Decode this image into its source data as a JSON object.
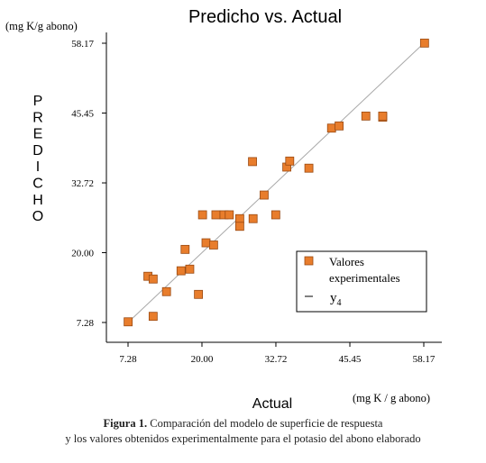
{
  "chart_data": {
    "type": "scatter",
    "title": "Predicho vs. Actual",
    "xlabel": "Actual",
    "ylabel": "P R E D I C H O",
    "x_units": "(mg K / g abono)",
    "y_units": "(mg K/g abono)",
    "xlim": [
      7.28,
      58.17
    ],
    "ylim": [
      7.28,
      58.17
    ],
    "xticks": [
      "7.28",
      "20.00",
      "32.72",
      "45.45",
      "58.17"
    ],
    "yticks": [
      "7.28",
      "20.00",
      "32.72",
      "45.45",
      "58.17"
    ],
    "grid": false,
    "legend": {
      "position": "bottom-right",
      "entries": [
        {
          "label_line1": "Valores",
          "label_line2": "experimentales",
          "marker": "square"
        },
        {
          "label": "y",
          "subscript": "4",
          "marker": "line"
        }
      ]
    },
    "colors": {
      "marker_fill": "#e87d2c",
      "marker_edge": "#9a4a12",
      "fit_line": "#a8a8a8",
      "axes": "#000000"
    },
    "series": [
      {
        "name": "Valores experimentales",
        "points": [
          {
            "x": 7.3,
            "y": 7.4
          },
          {
            "x": 11.6,
            "y": 8.4
          },
          {
            "x": 10.7,
            "y": 15.7
          },
          {
            "x": 11.6,
            "y": 15.2
          },
          {
            "x": 13.9,
            "y": 12.9
          },
          {
            "x": 16.4,
            "y": 16.7
          },
          {
            "x": 17.9,
            "y": 17.0
          },
          {
            "x": 17.1,
            "y": 20.6
          },
          {
            "x": 19.4,
            "y": 12.4
          },
          {
            "x": 20.7,
            "y": 21.8
          },
          {
            "x": 22.0,
            "y": 21.4
          },
          {
            "x": 20.1,
            "y": 26.9
          },
          {
            "x": 22.4,
            "y": 26.9
          },
          {
            "x": 23.8,
            "y": 26.9
          },
          {
            "x": 24.7,
            "y": 26.9
          },
          {
            "x": 26.5,
            "y": 26.2
          },
          {
            "x": 26.5,
            "y": 24.8
          },
          {
            "x": 28.7,
            "y": 36.6
          },
          {
            "x": 28.8,
            "y": 26.2
          },
          {
            "x": 30.7,
            "y": 30.5
          },
          {
            "x": 32.7,
            "y": 26.9
          },
          {
            "x": 34.6,
            "y": 35.6
          },
          {
            "x": 35.1,
            "y": 36.7
          },
          {
            "x": 38.4,
            "y": 35.4
          },
          {
            "x": 42.3,
            "y": 42.7
          },
          {
            "x": 43.6,
            "y": 43.1
          },
          {
            "x": 48.2,
            "y": 44.9
          },
          {
            "x": 51.1,
            "y": 44.7
          },
          {
            "x": 51.1,
            "y": 44.9
          },
          {
            "x": 58.3,
            "y": 58.2
          }
        ]
      }
    ],
    "fit_line": {
      "from": [
        7.28,
        7.28
      ],
      "to": [
        58.17,
        58.17
      ]
    }
  },
  "caption": {
    "label": "Figura 1.",
    "line1": "Comparación del modelo de superficie de respuesta",
    "line2": "y los valores obtenidos experimentalmente para el potasio del abono elaborado"
  }
}
